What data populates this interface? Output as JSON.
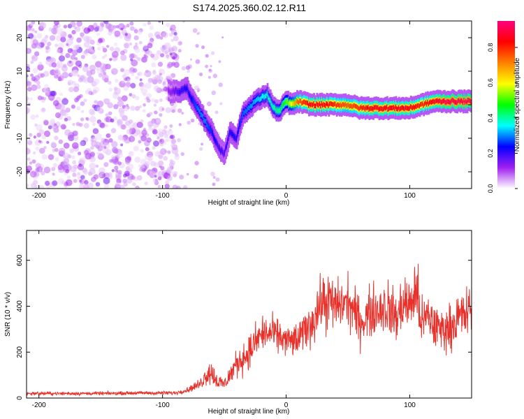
{
  "title": "S174.2025.360.02.12.R11",
  "chart_data": [
    {
      "type": "heatmap",
      "name": "spectrogram",
      "xlabel": "Height of straight line (km)",
      "ylabel": "Frequency (Hz)",
      "xlim": [
        -210,
        150
      ],
      "ylim": [
        -25,
        25
      ],
      "xticks": [
        -200,
        -100,
        0,
        100
      ],
      "xtick_labels": [
        "-200",
        "-100",
        "0",
        "100"
      ],
      "yticks": [
        -20,
        -10,
        0,
        10,
        20
      ],
      "ytick_labels": [
        "-20",
        "-10",
        "0",
        "10",
        "20"
      ],
      "grid": false,
      "colorbar": {
        "label": "Normalized spectral amplitude",
        "range": [
          0,
          0.95
        ],
        "ticks": [
          0.0,
          0.2,
          0.4,
          0.6,
          0.8
        ],
        "tick_labels": [
          "0.0",
          "0.2",
          "0.4",
          "0.6",
          "0.8"
        ],
        "colormap_stops": [
          "#ffffff",
          "#a020f0",
          "#0000ff",
          "#00ffff",
          "#00ff00",
          "#ffff00",
          "#ff8000",
          "#ff0000",
          "#ff0080"
        ]
      },
      "noise_region": {
        "x_range": [
          -210,
          -88
        ],
        "typical_amplitude": 0.08
      },
      "frequency_track": {
        "x": [
          -95,
          -85,
          -80,
          -75,
          -70,
          -65,
          -60,
          -55,
          -50,
          -45,
          -40,
          -35,
          -30,
          -25,
          -20,
          -15,
          -10,
          -5,
          0,
          5,
          10,
          20,
          30,
          40,
          50,
          60,
          70,
          80,
          90,
          100,
          110,
          120,
          130,
          140,
          150
        ],
        "freq": [
          4,
          4,
          5,
          1,
          -2,
          -5,
          -8,
          -12,
          -15,
          -8,
          -10,
          -3,
          -1,
          1,
          2,
          3,
          -1,
          -2,
          1,
          0,
          1,
          0,
          0,
          0,
          0,
          -1,
          -1,
          -1,
          -1,
          -1,
          0,
          1,
          1,
          1,
          1
        ],
        "amplitude": [
          0.12,
          0.2,
          0.22,
          0.25,
          0.3,
          0.3,
          0.25,
          0.2,
          0.18,
          0.22,
          0.22,
          0.28,
          0.3,
          0.32,
          0.35,
          0.38,
          0.4,
          0.42,
          0.5,
          0.6,
          0.75,
          0.85,
          0.85,
          0.8,
          0.75,
          0.8,
          0.85,
          0.85,
          0.85,
          0.85,
          0.8,
          0.85,
          0.9,
          0.9,
          0.9
        ]
      }
    },
    {
      "type": "line",
      "name": "snr",
      "xlabel": "Height of straight line (km)",
      "ylabel": "SNR (10 * v/v)",
      "xlim": [
        -210,
        150
      ],
      "ylim": [
        0,
        730
      ],
      "xticks": [
        -200,
        -100,
        0,
        100
      ],
      "xtick_labels": [
        "-200",
        "-100",
        "0",
        "100"
      ],
      "yticks": [
        0,
        200,
        400,
        600
      ],
      "ytick_labels": [
        "0",
        "200",
        "400",
        "600"
      ],
      "color": "#e8312a",
      "grid": false,
      "envelope": {
        "x": [
          -210,
          -180,
          -150,
          -120,
          -90,
          -80,
          -70,
          -62,
          -55,
          -50,
          -40,
          -30,
          -20,
          -10,
          0,
          10,
          15,
          20,
          25,
          30,
          35,
          40,
          50,
          60,
          70,
          80,
          90,
          95,
          100,
          105,
          110,
          115,
          120,
          125,
          130,
          140,
          150
        ],
        "mean": [
          20,
          20,
          20,
          22,
          22,
          35,
          60,
          120,
          70,
          60,
          150,
          200,
          280,
          280,
          250,
          250,
          300,
          320,
          380,
          420,
          420,
          400,
          420,
          330,
          380,
          400,
          350,
          420,
          400,
          470,
          320,
          360,
          310,
          300,
          300,
          350,
          380
        ],
        "amp": [
          10,
          10,
          10,
          10,
          12,
          15,
          30,
          80,
          50,
          40,
          80,
          100,
          110,
          100,
          90,
          100,
          110,
          130,
          150,
          170,
          170,
          150,
          150,
          140,
          150,
          160,
          160,
          170,
          150,
          220,
          150,
          140,
          140,
          130,
          120,
          150,
          150
        ]
      }
    }
  ]
}
